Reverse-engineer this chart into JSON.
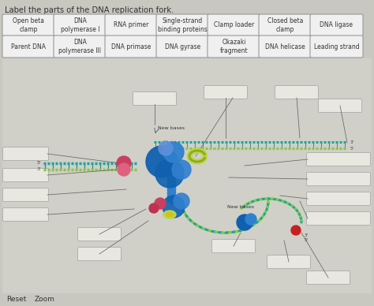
{
  "title": "Label the parts of the DNA replication fork.",
  "background_color": "#c8c8c0",
  "box_labels_row1": [
    "Open beta\nclamp",
    "DNA\npolymerase I",
    "RNA primer",
    "Single-strand\nbinding proteins",
    "Clamp loader",
    "Closed beta\nclamp",
    "DNA ligase"
  ],
  "box_labels_row2": [
    "Parent DNA",
    "DNA\npolymerase III",
    "DNA primase",
    "DNA gyrase",
    "Okazaki\nfragment",
    "DNA helicase",
    "Leading strand"
  ],
  "footer_labels": [
    "Reset",
    "Zoom"
  ],
  "box_color": "#f0f0f0",
  "box_border": "#999999",
  "text_color": "#333333",
  "answer_box_color": "#e8e8e0",
  "answer_box_border": "#aaaaaa",
  "dna_teal": "#18a898",
  "dna_teal2": "#40c8b8",
  "dna_green_stripe": "#88c840",
  "dna_blue_dark": "#1060b0",
  "dna_blue_mid": "#3080d0",
  "dna_blue_light": "#50a0e8",
  "dna_pink": "#c84060",
  "dna_pink2": "#e06080",
  "dna_olive": "#90a820",
  "dna_olive2": "#b8d840",
  "dna_yellow": "#d0c020",
  "dna_dot_light": "#e8f8f0",
  "strand_teal": "#20b0a0",
  "strand_green": "#70c030"
}
